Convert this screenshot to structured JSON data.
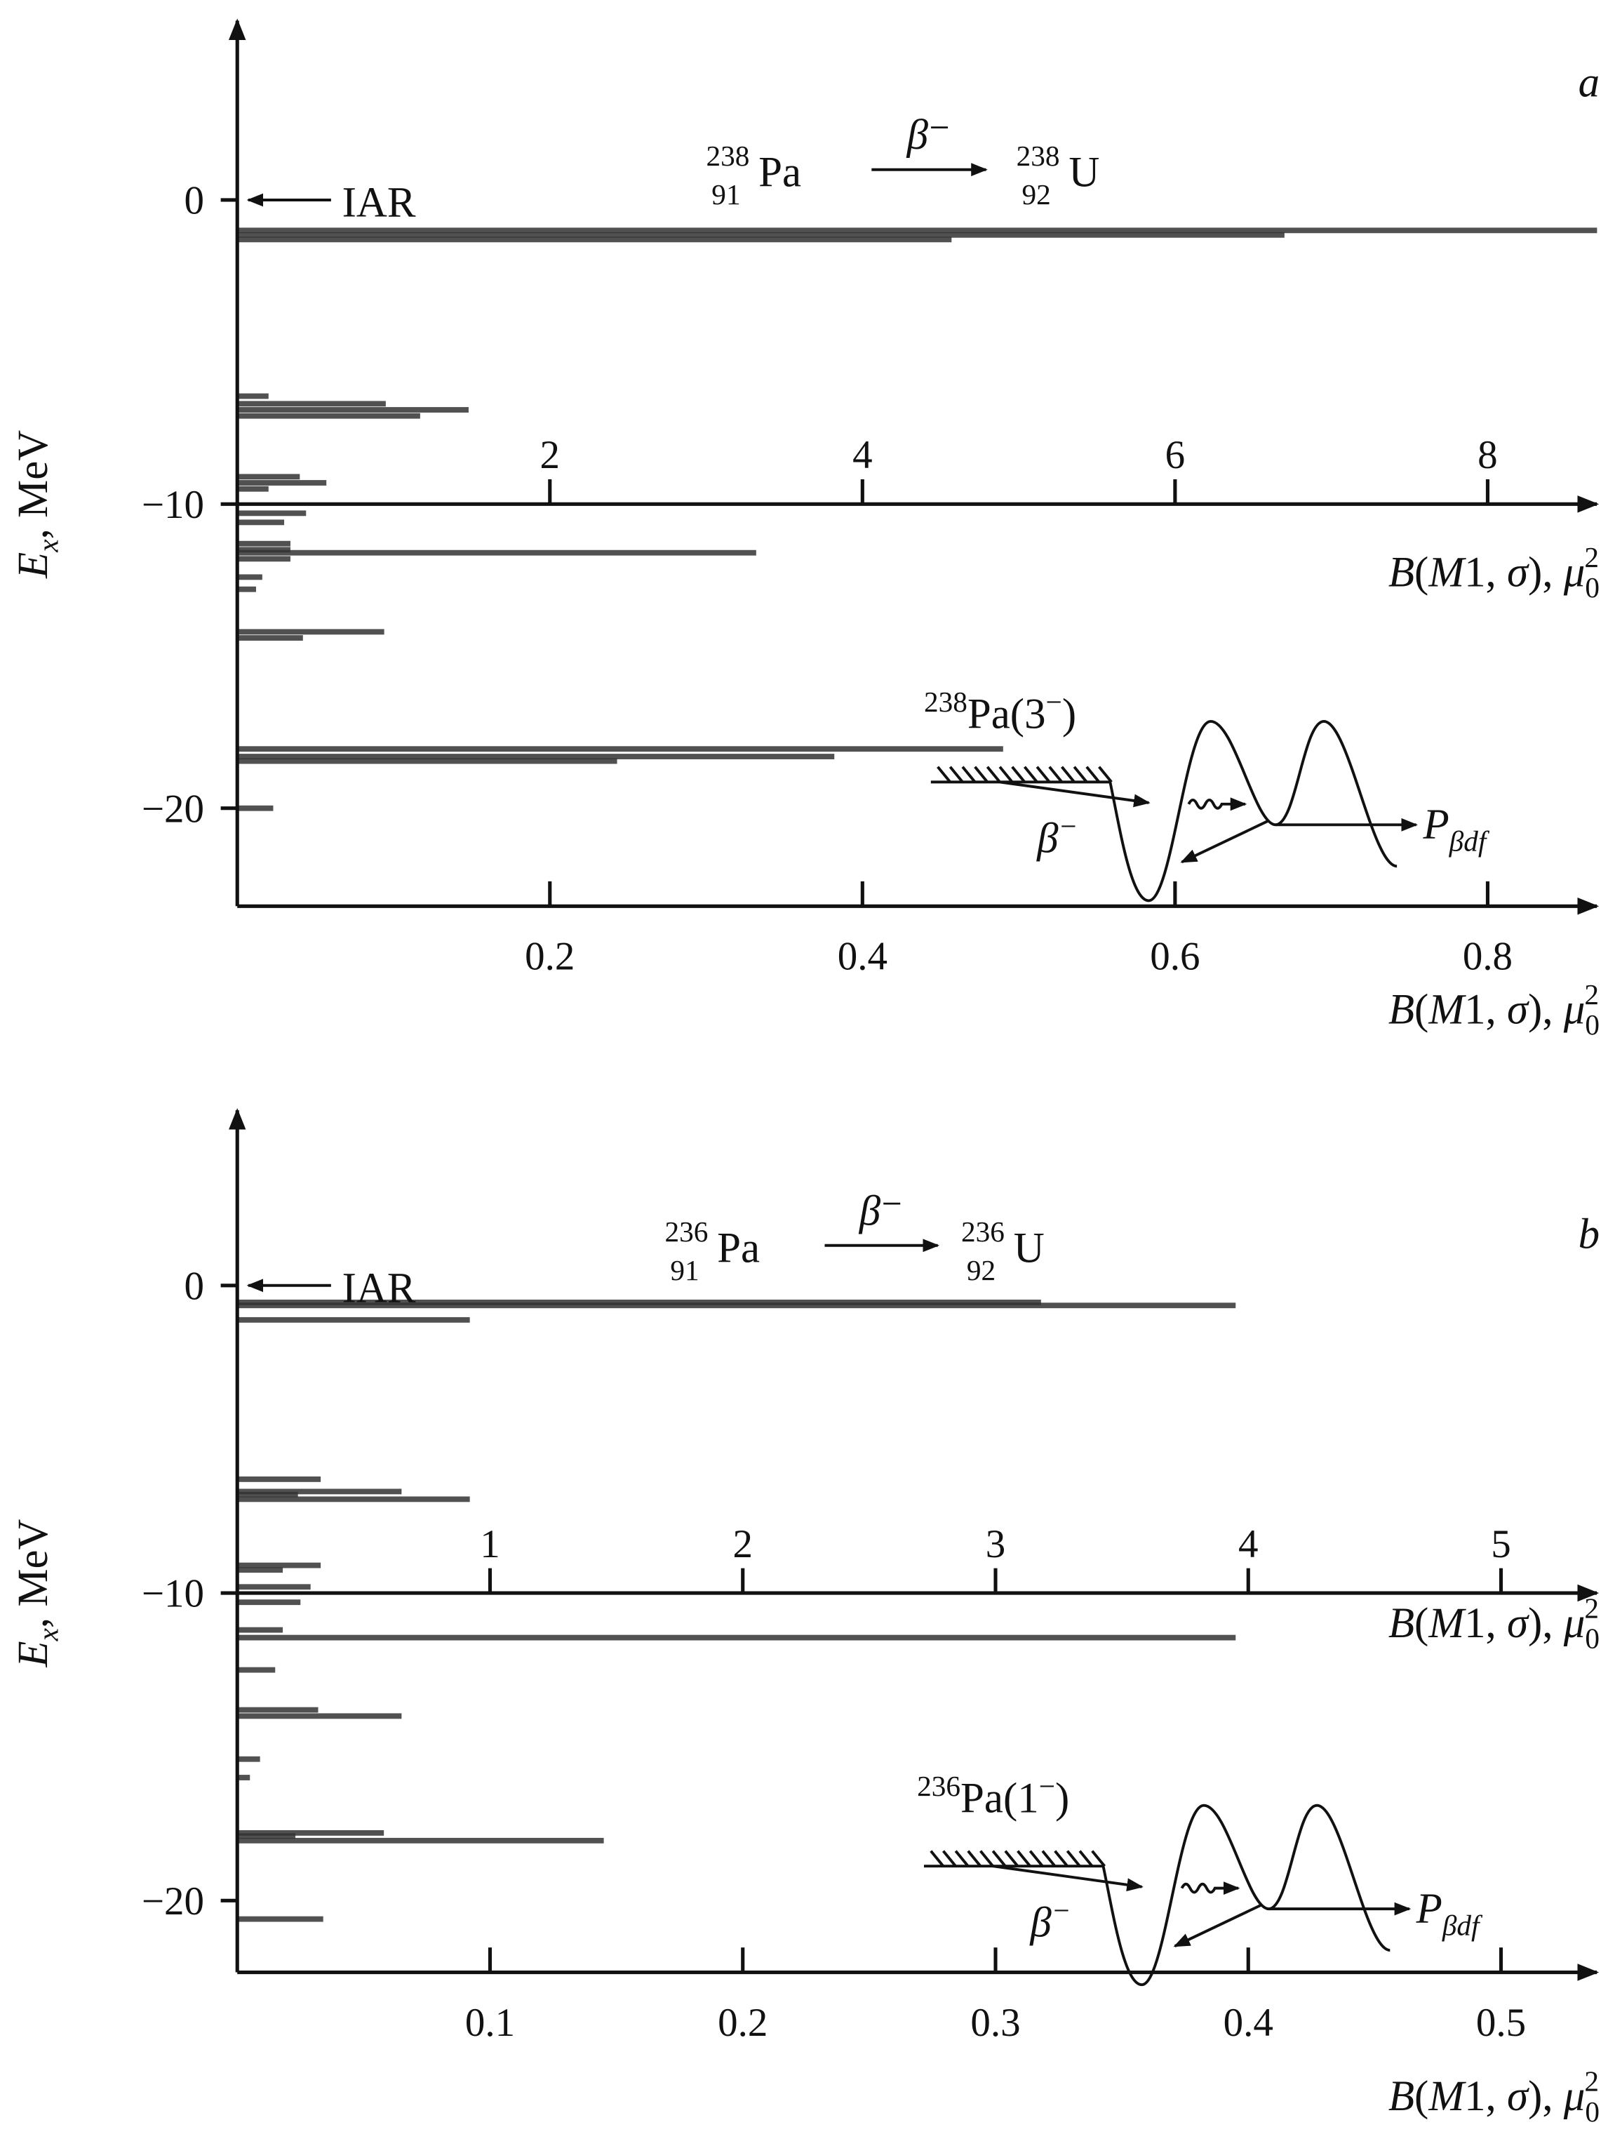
{
  "chart_data": [
    {
      "type": "bar",
      "orientation": "horizontal",
      "panel_label": "a",
      "reaction": {
        "parent_A": "238",
        "parent_Z": "91",
        "parent": "Pa",
        "decay": "β⁻",
        "daughter_A": "238",
        "daughter_Z": "92",
        "daughter": "U"
      },
      "iar_label": "IAR",
      "iar_energy": 0,
      "ylabel": {
        "main": "E",
        "sub": "x",
        "rest": ", MeV"
      },
      "ylim": [
        -23.5,
        6
      ],
      "yticks": [
        0,
        -10,
        -20
      ],
      "ytick_labels": [
        "0",
        "−10",
        "−20"
      ],
      "x_bottom": {
        "lim": [
          0,
          0.87
        ],
        "ticks": [
          0.2,
          0.4,
          0.6,
          0.8
        ],
        "tick_labels": [
          "0.2",
          "0.4",
          "0.6",
          "0.8"
        ]
      },
      "x_top": {
        "lim": [
          0,
          8.7
        ],
        "ticks": [
          2,
          4,
          6,
          8
        ],
        "tick_labels": [
          "2",
          "4",
          "6",
          "8"
        ],
        "at_energy": -10
      },
      "xlabel": {
        "parts": [
          "B",
          "(",
          "M",
          "1, ",
          "σ",
          "), ",
          "μ"
        ],
        "sub": "0",
        "sup": "2"
      },
      "inset": {
        "label_A": "238",
        "label_rest": "Pa(3",
        "label_sup": "−",
        "label_close": ")",
        "beta": "β",
        "beta_sup": "−",
        "P": "P",
        "P_sub": "βdf"
      },
      "bars": [
        {
          "E": -1.0,
          "B": 0.87
        },
        {
          "E": -1.15,
          "B": 0.67
        },
        {
          "E": -1.3,
          "B": 0.457
        },
        {
          "E": -6.45,
          "B": 0.02
        },
        {
          "E": -6.7,
          "B": 0.095
        },
        {
          "E": -6.9,
          "B": 0.148
        },
        {
          "E": -7.1,
          "B": 0.117
        },
        {
          "E": -9.1,
          "B": 0.04
        },
        {
          "E": -9.3,
          "B": 0.057
        },
        {
          "E": -9.5,
          "B": 0.02
        },
        {
          "E": -10.3,
          "B": 0.044
        },
        {
          "E": -10.6,
          "B": 0.03
        },
        {
          "E": -11.3,
          "B": 0.034
        },
        {
          "E": -11.5,
          "B": 0.034
        },
        {
          "E": -11.6,
          "B": 0.332
        },
        {
          "E": -11.8,
          "B": 0.034
        },
        {
          "E": -12.4,
          "B": 0.016
        },
        {
          "E": -12.8,
          "B": 0.012
        },
        {
          "E": -14.2,
          "B": 0.094
        },
        {
          "E": -14.4,
          "B": 0.042
        },
        {
          "E": -18.05,
          "B": 0.49
        },
        {
          "E": -18.3,
          "B": 0.382
        },
        {
          "E": -18.45,
          "B": 0.243
        },
        {
          "E": -20.0,
          "B": 0.023
        }
      ]
    },
    {
      "type": "bar",
      "orientation": "horizontal",
      "panel_label": "b",
      "reaction": {
        "parent_A": "236",
        "parent_Z": "91",
        "parent": "Pa",
        "decay": "β⁻",
        "daughter_A": "236",
        "daughter_Z": "92",
        "daughter": "U"
      },
      "iar_label": "IAR",
      "iar_energy": 0,
      "ylabel": {
        "main": "E",
        "sub": "x",
        "rest": ", MeV"
      },
      "ylim": [
        -22.5,
        5.6
      ],
      "yticks": [
        0,
        -10,
        -20
      ],
      "ytick_labels": [
        "0",
        "−10",
        "−20"
      ],
      "x_bottom": {
        "lim": [
          0,
          0.54
        ],
        "ticks": [
          0.1,
          0.2,
          0.3,
          0.4,
          0.5
        ],
        "tick_labels": [
          "0.1",
          "0.2",
          "0.3",
          "0.4",
          "0.5"
        ]
      },
      "x_top": {
        "lim": [
          0,
          5.4
        ],
        "ticks": [
          1,
          2,
          3,
          4,
          5
        ],
        "tick_labels": [
          "1",
          "2",
          "3",
          "4",
          "5"
        ],
        "at_energy": -10
      },
      "xlabel": {
        "parts": [
          "B",
          "(",
          "M",
          "1, ",
          "σ",
          "), ",
          "μ"
        ],
        "sub": "0",
        "sup": "2"
      },
      "inset": {
        "label_A": "236",
        "label_rest": "Pa(1",
        "label_sup": "−",
        "label_close": ")",
        "beta": "β",
        "beta_sup": "−",
        "P": "P",
        "P_sub": "βdf"
      },
      "bars": [
        {
          "E": -0.55,
          "B": 0.318
        },
        {
          "E": -0.65,
          "B": 0.395
        },
        {
          "E": -1.12,
          "B": 0.092
        },
        {
          "E": -6.3,
          "B": 0.033
        },
        {
          "E": -6.7,
          "B": 0.065
        },
        {
          "E": -6.8,
          "B": 0.024
        },
        {
          "E": -6.95,
          "B": 0.092
        },
        {
          "E": -9.1,
          "B": 0.033
        },
        {
          "E": -9.25,
          "B": 0.018
        },
        {
          "E": -9.8,
          "B": 0.029
        },
        {
          "E": -10.3,
          "B": 0.025
        },
        {
          "E": -11.2,
          "B": 0.018
        },
        {
          "E": -11.45,
          "B": 0.395
        },
        {
          "E": -12.5,
          "B": 0.015
        },
        {
          "E": -13.8,
          "B": 0.032
        },
        {
          "E": -14.0,
          "B": 0.065
        },
        {
          "E": -15.4,
          "B": 0.009
        },
        {
          "E": -16.0,
          "B": 0.005
        },
        {
          "E": -17.8,
          "B": 0.058
        },
        {
          "E": -17.9,
          "B": 0.023
        },
        {
          "E": -18.05,
          "B": 0.145
        },
        {
          "E": -20.6,
          "B": 0.034
        }
      ]
    }
  ],
  "colors": {
    "bars": "#333333",
    "axes": "#111111"
  }
}
